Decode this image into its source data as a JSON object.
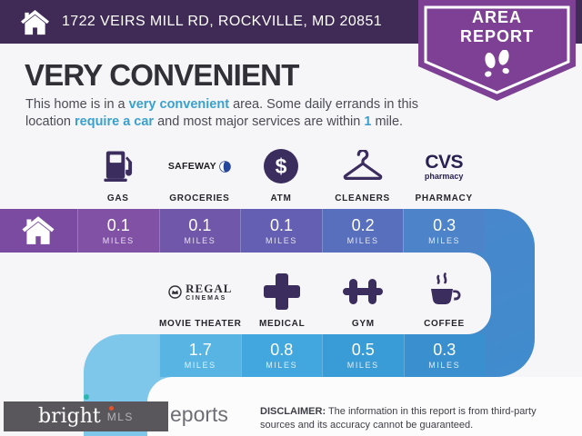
{
  "header": {
    "address": "1722 VEIRS MILL RD, ROCKVILLE, MD 20851",
    "badge_line1": "AREA",
    "badge_line2": "REPORT"
  },
  "title": "VERY CONVENIENT",
  "intro": {
    "t1": "This home is in a ",
    "h1": "very convenient",
    "t2": " area. Some daily errands in this location ",
    "h2": "require a car",
    "t3": " and most major services are within ",
    "h3": "1",
    "t4": " mile."
  },
  "row1": {
    "items": [
      {
        "label": "GAS",
        "icon": "gas-pump-icon",
        "distance": "0.1",
        "unit": "MILES",
        "color": "#8151a5"
      },
      {
        "label": "GROCERIES",
        "icon": "safeway-logo",
        "brand": "SAFEWAY",
        "distance": "0.1",
        "unit": "MILES",
        "color": "#7157a9"
      },
      {
        "label": "ATM",
        "icon": "dollar-circle-icon",
        "symbol": "$",
        "distance": "0.1",
        "unit": "MILES",
        "color": "#655fb3"
      },
      {
        "label": "CLEANERS",
        "icon": "hanger-icon",
        "distance": "0.2",
        "unit": "MILES",
        "color": "#586fbe"
      },
      {
        "label": "PHARMACY",
        "icon": "cvs-logo",
        "brand": "CVS",
        "brand_sub": "pharmacy",
        "distance": "0.3",
        "unit": "MILES",
        "color": "#4d83c9"
      }
    ]
  },
  "row2": {
    "items": [
      {
        "label": "MOVIE THEATER",
        "icon": "regal-cinemas-logo",
        "brand": "REGAL",
        "brand_sub": "CINEMAS",
        "distance": "1.7",
        "unit": "MILES",
        "color": "#58b4e3"
      },
      {
        "label": "MEDICAL",
        "icon": "medical-cross-icon",
        "distance": "0.8",
        "unit": "MILES",
        "color": "#42a7de"
      },
      {
        "label": "GYM",
        "icon": "dumbbell-icon",
        "distance": "0.5",
        "unit": "MILES",
        "color": "#3a9cd6"
      },
      {
        "label": "COFFEE",
        "icon": "coffee-cup-icon",
        "distance": "0.3",
        "unit": "MILES",
        "color": "#3a90ce"
      }
    ]
  },
  "footer": {
    "partial_text": "eports",
    "logo_text": "bright",
    "logo_sub": "MLS",
    "disclaimer_label": "DISCLAIMER:",
    "disclaimer_text": " The information in this report is from third-party sources and its accuracy cannot be guaranteed."
  },
  "colors": {
    "topbar_bg": "#3f2b55",
    "badge_bg": "#7d4095",
    "accent_blue_text": "#3aa0ce",
    "icon_dark": "#3b2d5e",
    "bar1_home_segment": "#7a4ba0",
    "ribbon_right_band": "#4a86cb",
    "ribbon_left_band": "#7ec7ea",
    "page_bg": "#f6f5f7",
    "logo_box_bg": "#59575c",
    "logo_teal": "#2cb7ae",
    "logo_orange": "#e2542c"
  }
}
